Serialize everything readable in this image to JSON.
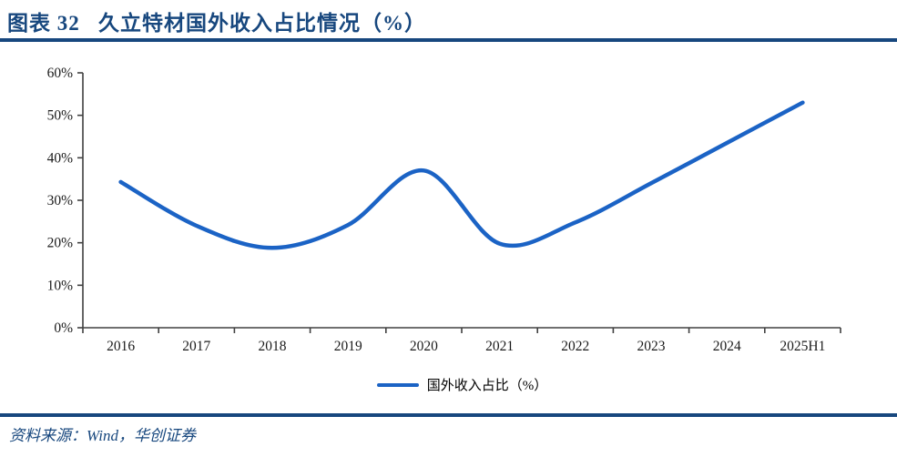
{
  "header": {
    "title": "图表 32   久立特材国外收入占比情况（%）"
  },
  "chart_data": {
    "type": "line",
    "title": "久立特材国外收入占比情况（%）",
    "categories": [
      "2016",
      "2017",
      "2018",
      "2019",
      "2020",
      "2021",
      "2022",
      "2023",
      "2024",
      "2025H1"
    ],
    "series": [
      {
        "name": "国外收入占比（%）",
        "values": [
          34.3,
          24.0,
          18.8,
          24.2,
          37.0,
          19.8,
          24.8,
          34.0,
          43.5,
          53.0
        ]
      }
    ],
    "xlabel": "",
    "ylabel": "",
    "ylim": [
      0,
      60
    ],
    "ytick_step": 10,
    "ytick_labels": [
      "0%",
      "10%",
      "20%",
      "30%",
      "40%",
      "50%",
      "60%"
    ],
    "grid": false,
    "smooth": true,
    "legend_position": "bottom",
    "line_color": "#1B63C5",
    "axis_color": "#404040"
  },
  "legend": {
    "label": "国外收入占比（%）"
  },
  "footer": {
    "source": "资料来源：Wind，华创证券"
  },
  "colors": {
    "accent_navy": "#17477E",
    "line_blue": "#1B63C5",
    "axis_gray": "#404040"
  }
}
